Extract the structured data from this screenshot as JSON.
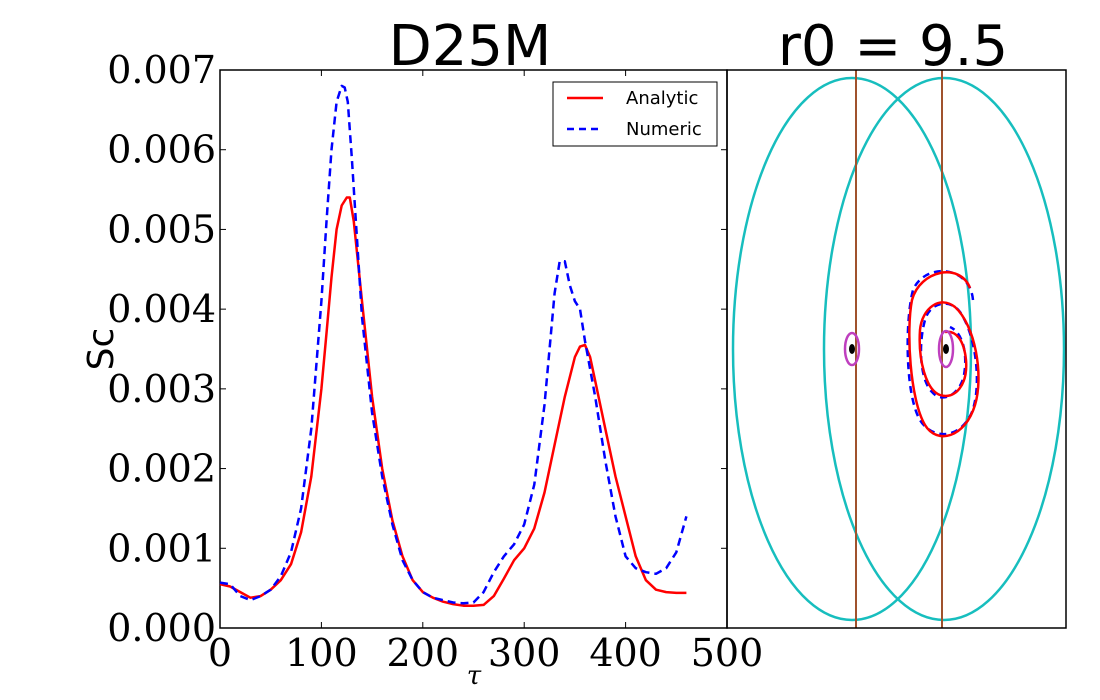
{
  "chart_data": [
    {
      "type": "line",
      "title": "D25M",
      "xlabel": "τ",
      "ylabel": "Sc",
      "xlim": [
        0,
        500
      ],
      "ylim": [
        0,
        0.007
      ],
      "xticks": [
        "0",
        "100",
        "200",
        "300",
        "400",
        "500"
      ],
      "yticks": [
        "0.000",
        "0.001",
        "0.002",
        "0.003",
        "0.004",
        "0.005",
        "0.006",
        "0.007"
      ],
      "legend_position": "top-right",
      "series": [
        {
          "name": "Analytic",
          "color": "#ff0000",
          "style": "solid",
          "x": [
            0,
            10,
            20,
            30,
            40,
            50,
            60,
            70,
            80,
            90,
            100,
            105,
            110,
            115,
            120,
            125,
            128,
            132,
            140,
            150,
            160,
            170,
            180,
            190,
            200,
            210,
            220,
            230,
            240,
            250,
            260,
            270,
            280,
            290,
            300,
            310,
            320,
            330,
            340,
            350,
            355,
            360,
            365,
            370,
            380,
            390,
            400,
            410,
            420,
            430,
            440,
            450,
            460
          ],
          "y": [
            0.00055,
            0.00052,
            0.00045,
            0.00038,
            0.0004,
            0.00048,
            0.0006,
            0.0008,
            0.0012,
            0.0019,
            0.003,
            0.0037,
            0.0044,
            0.005,
            0.0053,
            0.0054,
            0.0054,
            0.0051,
            0.0041,
            0.0029,
            0.002,
            0.00135,
            0.0009,
            0.0006,
            0.00045,
            0.00038,
            0.00033,
            0.0003,
            0.00028,
            0.00028,
            0.00029,
            0.0004,
            0.00062,
            0.00085,
            0.001,
            0.00125,
            0.0017,
            0.0023,
            0.0029,
            0.0034,
            0.00353,
            0.00355,
            0.0034,
            0.0031,
            0.0025,
            0.0019,
            0.0014,
            0.0009,
            0.0006,
            0.00048,
            0.00045,
            0.00044,
            0.00044
          ]
        },
        {
          "name": "Numeric",
          "color": "#0000ff",
          "style": "dashed",
          "x": [
            0,
            10,
            20,
            30,
            40,
            50,
            60,
            70,
            80,
            90,
            100,
            105,
            110,
            115,
            120,
            123,
            126,
            130,
            135,
            140,
            150,
            160,
            170,
            180,
            190,
            200,
            210,
            220,
            230,
            240,
            250,
            260,
            270,
            280,
            290,
            300,
            310,
            320,
            330,
            335,
            340,
            345,
            350,
            355,
            360,
            370,
            380,
            390,
            400,
            410,
            420,
            430,
            440,
            450,
            460
          ],
          "y": [
            0.00057,
            0.00055,
            0.0004,
            0.00035,
            0.0004,
            0.00048,
            0.00065,
            0.00095,
            0.0015,
            0.0025,
            0.0041,
            0.0051,
            0.006,
            0.0066,
            0.0068,
            0.00678,
            0.0066,
            0.0059,
            0.0049,
            0.0039,
            0.0027,
            0.0019,
            0.0013,
            0.00085,
            0.0006,
            0.00045,
            0.00038,
            0.00035,
            0.00032,
            0.00031,
            0.00032,
            0.00045,
            0.0007,
            0.0009,
            0.00105,
            0.0013,
            0.0018,
            0.0028,
            0.0042,
            0.0046,
            0.0046,
            0.0043,
            0.0041,
            0.004,
            0.0036,
            0.0029,
            0.0021,
            0.0014,
            0.0009,
            0.00075,
            0.0007,
            0.00068,
            0.00075,
            0.00095,
            0.0014
          ]
        }
      ]
    },
    {
      "type": "diagram",
      "title": "r0 = 9.5",
      "description_colors": {
        "outer_ellipses": "#17bebe",
        "vertical_lines": "#a0522d",
        "small_ellipses": "#bf3fbf",
        "spiral_solid": "#ff0000",
        "spiral_dashed": "#0000ff"
      }
    }
  ]
}
